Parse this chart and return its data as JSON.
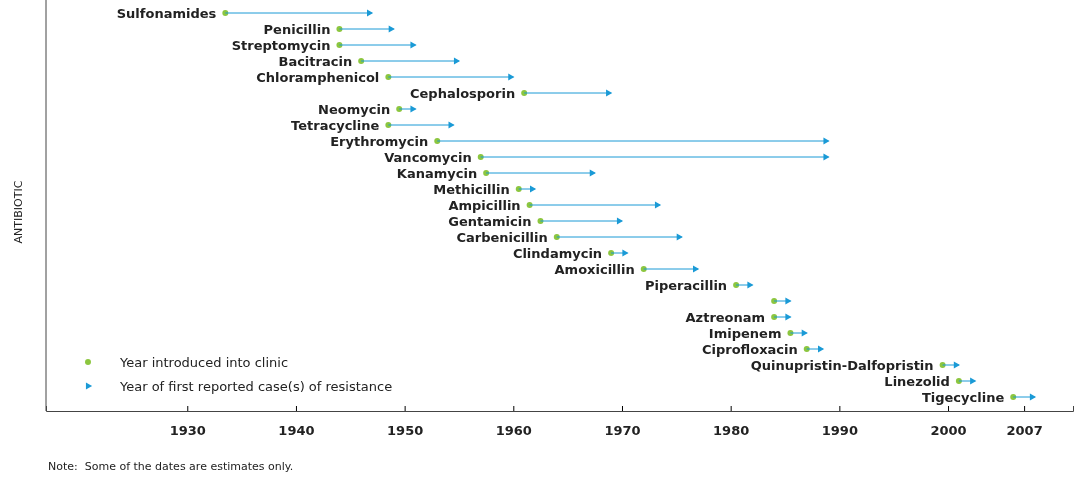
{
  "chart_data": {
    "type": "scatter",
    "orientation": "horizontal",
    "ylabel": "ANTIBIOTIC",
    "categories": [
      "Sulfonamides",
      "Penicillin",
      "Streptomycin",
      "Bacitracin",
      "Chloramphenicol",
      "Cephalosporin",
      "Neomycin",
      "Tetracycline",
      "Erythromycin",
      "Vancomycin",
      "Kanamycin",
      "Methicillin",
      "Ampicillin",
      "Gentamicin",
      "Carbenicillin",
      "Clindamycin",
      "Amoxicillin",
      "Piperacillin",
      null,
      "Aztreonam",
      "Imipenem",
      "Ciprofloxacin",
      "Quinupristin-Dalfopristin",
      "Linezolid",
      "Tigecycline"
    ],
    "series": [
      {
        "name": "Year introduced into clinic",
        "color": "#8cc63f",
        "marker": "circle",
        "values": [
          1933.5,
          1944,
          1944,
          1946,
          1948.5,
          1961,
          1949.5,
          1948.5,
          1953,
          1957,
          1957.5,
          1960.5,
          1961.5,
          1962.5,
          1964,
          1969,
          1972,
          1980.5,
          1984,
          1984,
          1985.5,
          1987,
          1999.5,
          2001,
          2006
        ]
      },
      {
        "name": "Year of first reported case(s) of resistance",
        "color": "#1a9ad6",
        "marker": "triangle",
        "values": [
          1947,
          1949,
          1951,
          1955,
          1960,
          1969,
          1951,
          1954.5,
          1989,
          1989,
          1967.5,
          1962,
          1973.5,
          1970,
          1975.5,
          1970.5,
          1977,
          1982,
          1985.5,
          1985.5,
          1987,
          1988.5,
          2001,
          2002.5,
          2008
        ]
      }
    ],
    "xlim": [
      1917,
      2011.5
    ],
    "xticks": [
      1930,
      1940,
      1950,
      1960,
      1970,
      1980,
      1990,
      2000,
      2007
    ],
    "tick_labels": "x",
    "grid": false,
    "legend": "bottom left",
    "annotations": [
      "Note:  Some of the dates are estimates only."
    ]
  }
}
